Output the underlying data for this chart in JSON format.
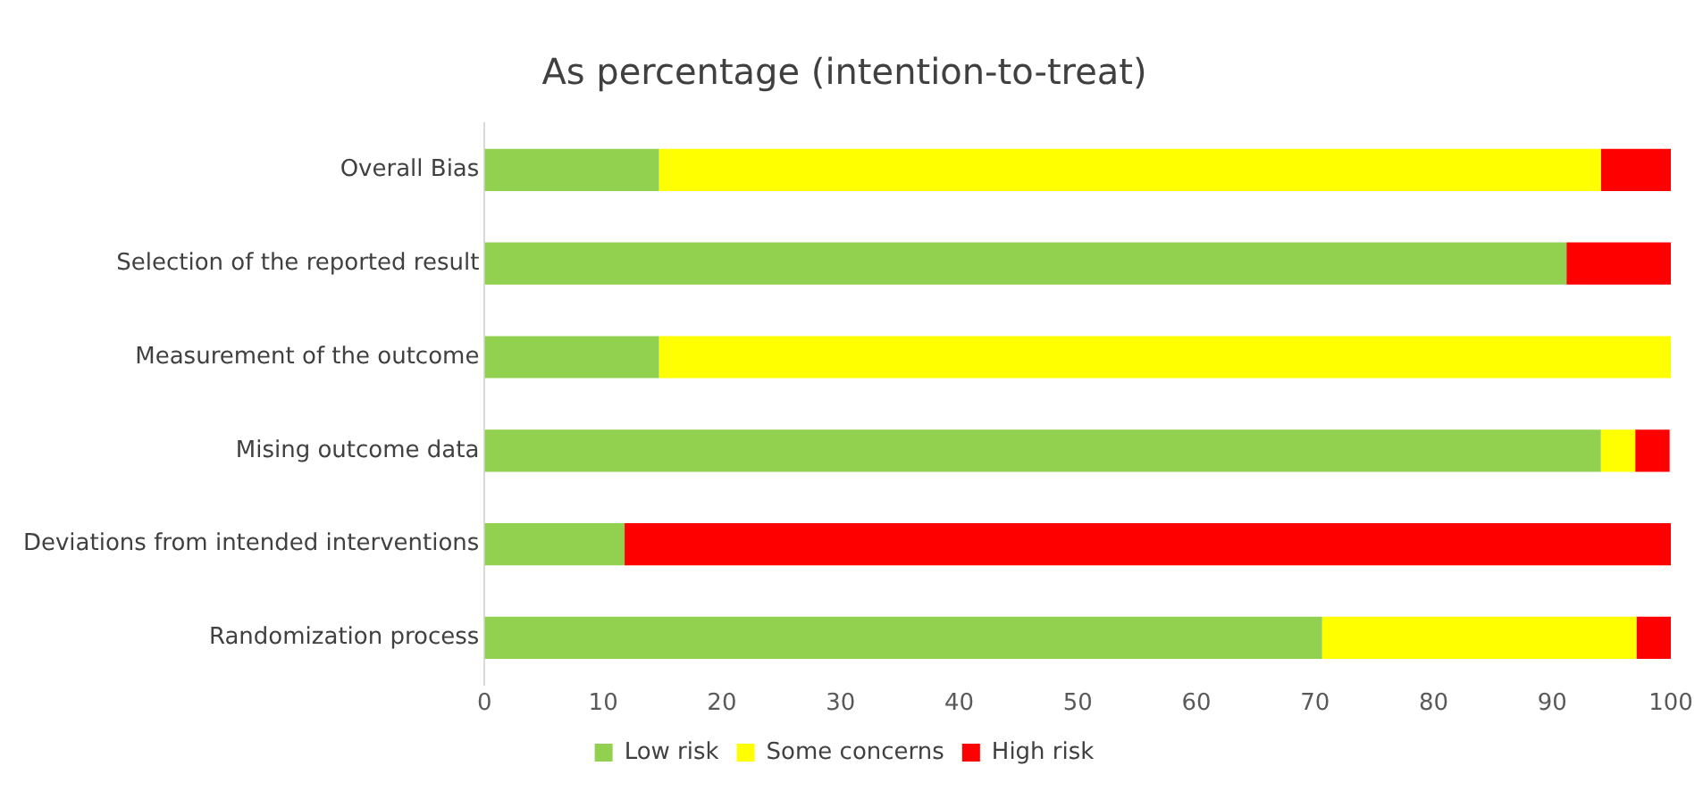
{
  "chart_data": {
    "type": "bar",
    "title": "As percentage (intention-to-treat)",
    "orientation": "horizontal",
    "stacked": true,
    "categories": [
      "Overall Bias",
      "Selection of the reported result",
      "Measurement of the outcome",
      "Mising outcome data",
      "Deviations from intended interventions",
      "Randomization process"
    ],
    "series": [
      {
        "name": "Low risk",
        "color": "#92d050",
        "values": [
          14.7,
          91.2,
          14.7,
          94.1,
          11.8,
          70.6
        ]
      },
      {
        "name": "Some concerns",
        "color": "#ffff00",
        "values": [
          79.4,
          0,
          85.3,
          2.9,
          0,
          26.5
        ]
      },
      {
        "name": "High risk",
        "color": "#ff0000",
        "values": [
          5.9,
          8.8,
          0,
          2.9,
          88.2,
          2.9
        ]
      }
    ],
    "xlim": [
      0,
      100
    ],
    "xticks": [
      0,
      10,
      20,
      30,
      40,
      50,
      60,
      70,
      80,
      90,
      100
    ],
    "grid": false,
    "legend": "bottom"
  }
}
